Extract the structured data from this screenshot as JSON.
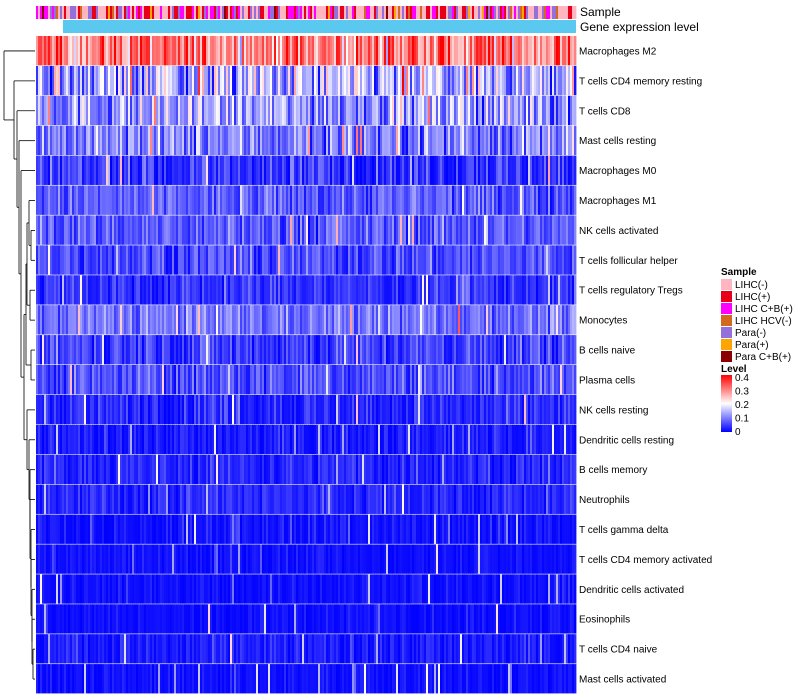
{
  "chart_data": {
    "type": "heatmap",
    "title": "",
    "annotation_rows": [
      "Sample",
      "Gene expression level"
    ],
    "row_labels": [
      "Macrophages M2",
      "T cells CD4 memory resting",
      "T cells CD8",
      "Mast cells resting",
      "Macrophages M0",
      "Macrophages M1",
      "NK cells activated",
      "T cells follicular helper",
      "T cells regulatory  Tregs",
      "Monocytes",
      "B cells naive",
      "Plasma cells",
      "NK cells resting",
      "Dendritic cells resting",
      "B cells memory",
      "Neutrophils",
      "T cells gamma delta",
      "T cells CD4 memory activated",
      "Dendritic cells activated",
      "Eosinophils",
      "T cells CD4 naive",
      "Mast cells activated"
    ],
    "row_mean_level": [
      0.3,
      0.13,
      0.12,
      0.1,
      0.04,
      0.07,
      0.07,
      0.06,
      0.04,
      0.09,
      0.05,
      0.06,
      0.03,
      0.02,
      0.03,
      0.03,
      0.01,
      0.01,
      0.01,
      0.01,
      0.02,
      0.01
    ],
    "row_noise_level": [
      0.1,
      0.12,
      0.09,
      0.08,
      0.06,
      0.05,
      0.05,
      0.05,
      0.04,
      0.05,
      0.05,
      0.05,
      0.04,
      0.03,
      0.03,
      0.03,
      0.03,
      0.02,
      0.02,
      0.02,
      0.03,
      0.02
    ],
    "sample_legend": {
      "title": "Sample",
      "items": [
        {
          "label": "LIHC(-)",
          "color": "#FFB6C1"
        },
        {
          "label": "LIHC(+)",
          "color": "#E8001A"
        },
        {
          "label": "LIHC C+B(+)",
          "color": "#FF00FF"
        },
        {
          "label": "LIHC HCV(-)",
          "color": "#D2691E"
        },
        {
          "label": "Para(-)",
          "color": "#9370DB"
        },
        {
          "label": "Para(+)",
          "color": "#FFA500"
        },
        {
          "label": "Para C+B(+)",
          "color": "#8B0000"
        }
      ],
      "sample_weights": [
        0.38,
        0.22,
        0.12,
        0.06,
        0.16,
        0.04,
        0.02
      ]
    },
    "level_legend": {
      "title": "Level",
      "ticks": [
        "0.4",
        "0.3",
        "0.2",
        "0.1",
        "0"
      ],
      "range": [
        0,
        0.4
      ],
      "colors": [
        "#0000FF",
        "#FFFFFF",
        "#FF0000"
      ]
    },
    "gene_expression_bar": {
      "left_color": "#ffffff",
      "right_color": "#5BC8F0",
      "split_fraction": 0.05
    },
    "n_columns": 270
  }
}
